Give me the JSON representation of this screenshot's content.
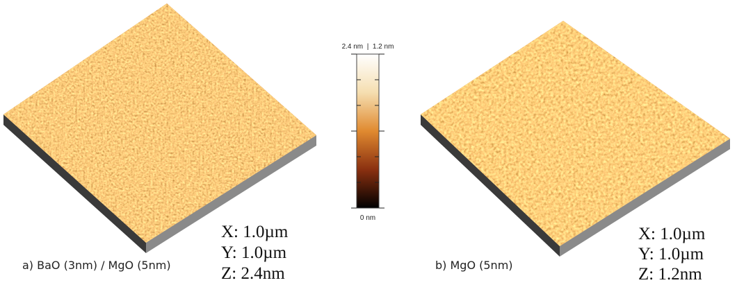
{
  "panels": [
    {
      "caption": "a) BaO (3nm) / MgO (5nm)",
      "x": "X: 1.0µm",
      "y": "Y: 1.0µm",
      "z": "Z: 2.4nm"
    },
    {
      "caption": "b) MgO (5nm)",
      "x": "X: 1.0µm",
      "y": "Y: 1.0µm",
      "z": "Z: 1.2nm"
    }
  ],
  "colorbar": {
    "top_label": "2.4 nm  |  1.2 nm",
    "bottom_label": "0 nm"
  }
}
